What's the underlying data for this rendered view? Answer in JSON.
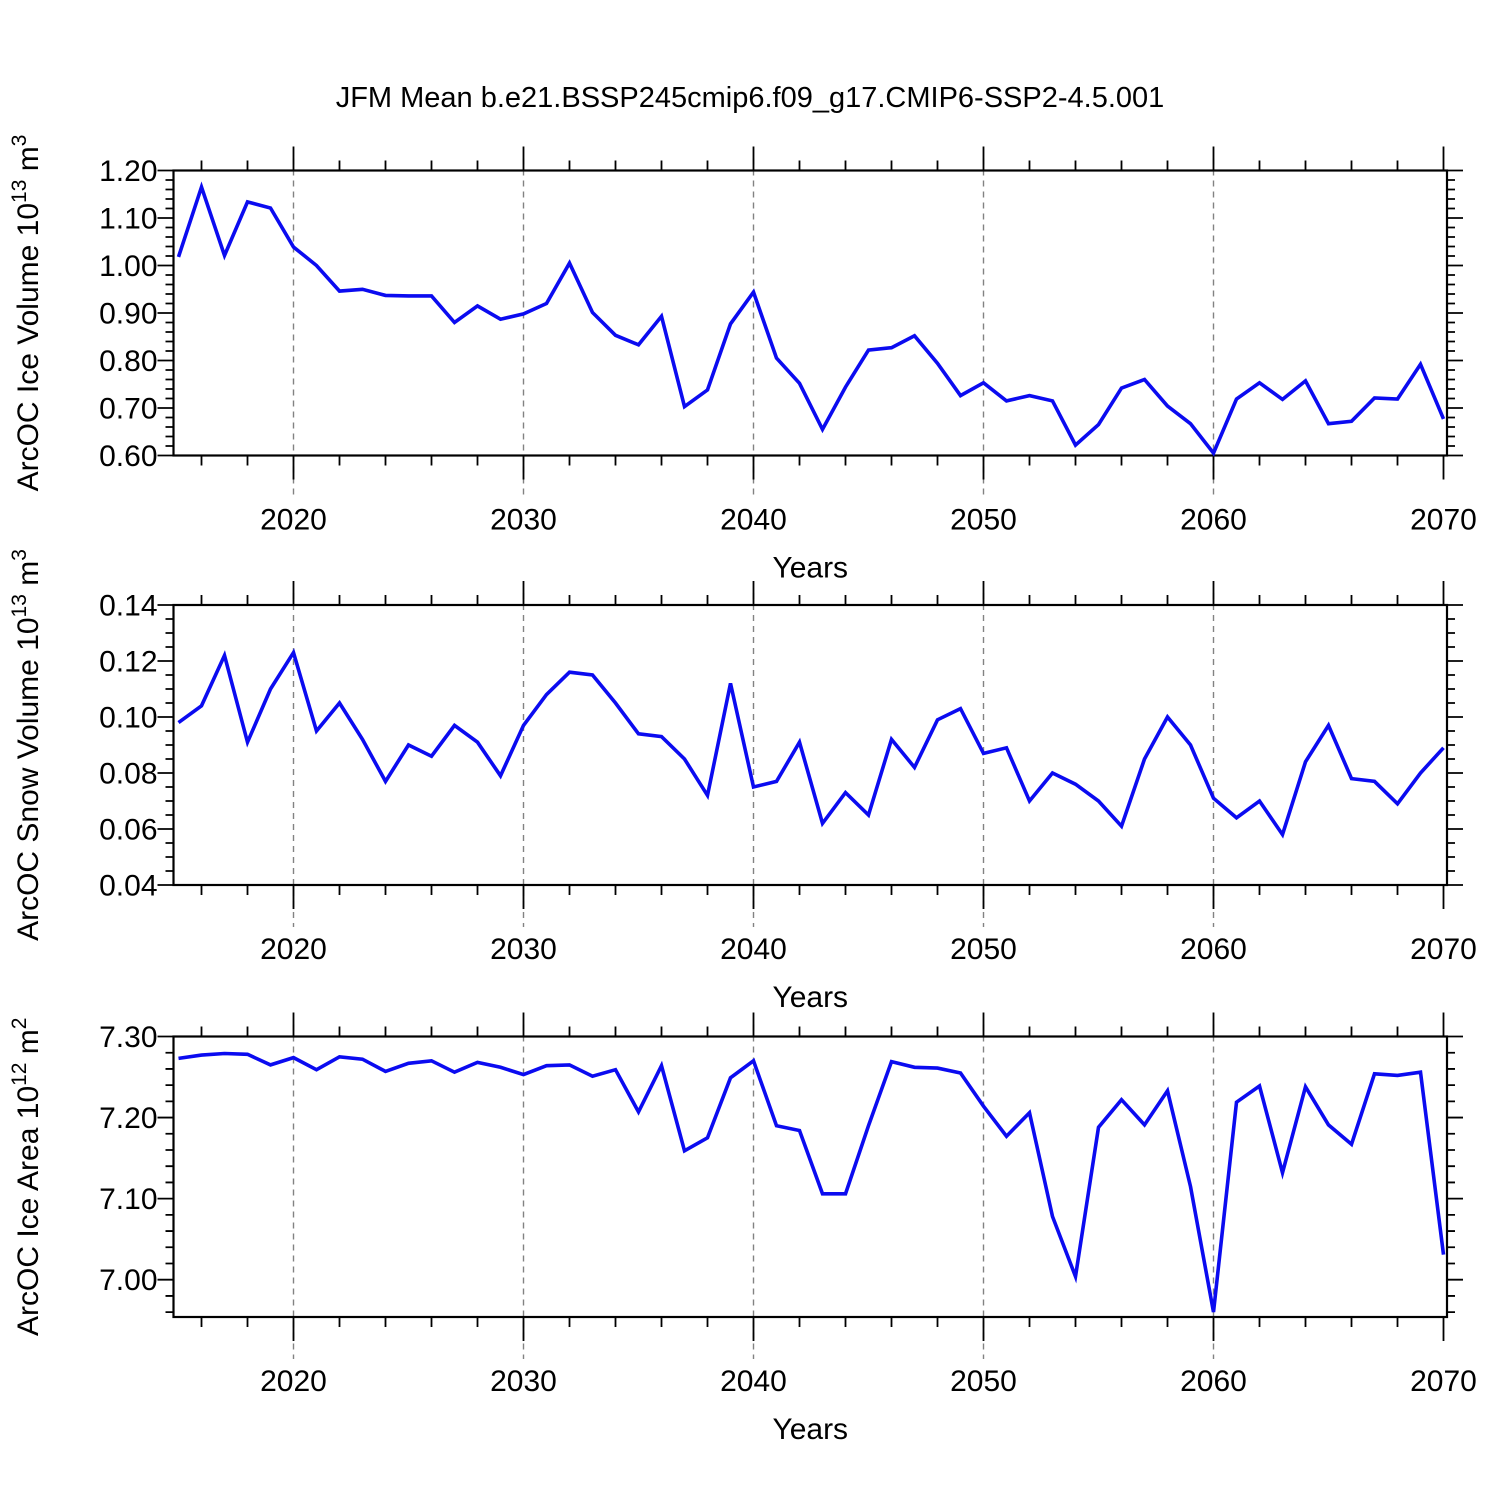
{
  "title": "JFM Mean b.e21.BSSP245cmip6.f09_g17.CMIP6-SSP2-4.5.001",
  "xlabel": "Years",
  "line_color": "#0b0bf0",
  "grid_color": "#828282",
  "frame_color": "#000000",
  "years": [
    2015,
    2016,
    2017,
    2018,
    2019,
    2020,
    2021,
    2022,
    2023,
    2024,
    2025,
    2026,
    2027,
    2028,
    2029,
    2030,
    2031,
    2032,
    2033,
    2034,
    2035,
    2036,
    2037,
    2038,
    2039,
    2040,
    2041,
    2042,
    2043,
    2044,
    2045,
    2046,
    2047,
    2048,
    2049,
    2050,
    2051,
    2052,
    2053,
    2054,
    2055,
    2056,
    2057,
    2058,
    2059,
    2060,
    2061,
    2062,
    2063,
    2064,
    2065,
    2066,
    2067,
    2068,
    2069,
    2070
  ],
  "x_axis": {
    "range_years": [
      2015,
      2070
    ],
    "major_tick_years": [
      2020,
      2030,
      2040,
      2050,
      2060,
      2070
    ],
    "major_tick_labels": [
      "2020",
      "2030",
      "2040",
      "2050",
      "2060",
      "2070"
    ],
    "minor_tick_step_years": 2,
    "grid_years": [
      2020,
      2030,
      2040,
      2050,
      2060
    ],
    "grid_style": "dashed"
  },
  "chart_data": [
    {
      "type": "line",
      "name": "arcoc-ice-volume",
      "ylabel_plain": "ArcOC Ice Volume 10^13 m^3",
      "ylabel_parts": [
        {
          "t": "ArcOC Ice Volume 10",
          "sup": false
        },
        {
          "t": "13",
          "sup": true
        },
        {
          "t": " m",
          "sup": false
        },
        {
          "t": "3",
          "sup": true
        }
      ],
      "ylim": [
        0.6,
        1.2
      ],
      "y_major": [
        {
          "v": 0.6,
          "label": "0.60"
        },
        {
          "v": 0.7,
          "label": "0.70"
        },
        {
          "v": 0.8,
          "label": "0.80"
        },
        {
          "v": 0.9,
          "label": "0.90"
        },
        {
          "v": 1.0,
          "label": "1.00"
        },
        {
          "v": 1.1,
          "label": "1.10"
        },
        {
          "v": 1.2,
          "label": "1.20"
        }
      ],
      "y_minor_step": 0.02,
      "values": [
        1.018,
        1.165,
        1.021,
        1.134,
        1.121,
        1.039,
        1.0,
        0.946,
        0.95,
        0.937,
        0.936,
        0.936,
        0.88,
        0.915,
        0.887,
        0.898,
        0.92,
        1.005,
        0.901,
        0.853,
        0.833,
        0.893,
        0.703,
        0.738,
        0.877,
        0.944,
        0.805,
        0.752,
        0.655,
        0.744,
        0.822,
        0.827,
        0.852,
        0.794,
        0.726,
        0.753,
        0.715,
        0.726,
        0.715,
        0.622,
        0.665,
        0.742,
        0.76,
        0.704,
        0.667,
        0.605,
        0.719,
        0.753,
        0.718,
        0.757,
        0.667,
        0.672,
        0.721,
        0.719,
        0.792,
        0.677
      ]
    },
    {
      "type": "line",
      "name": "arcoc-snow-volume",
      "ylabel_plain": "ArcOC Snow Volume 10^13 m^3",
      "ylabel_parts": [
        {
          "t": "ArcOC Snow Volume 10",
          "sup": false
        },
        {
          "t": "13",
          "sup": true
        },
        {
          "t": " m",
          "sup": false
        },
        {
          "t": "3",
          "sup": true
        }
      ],
      "ylim": [
        0.04,
        0.14
      ],
      "y_major": [
        {
          "v": 0.04,
          "label": "0.04"
        },
        {
          "v": 0.06,
          "label": "0.06"
        },
        {
          "v": 0.08,
          "label": "0.08"
        },
        {
          "v": 0.1,
          "label": "0.10"
        },
        {
          "v": 0.12,
          "label": "0.12"
        },
        {
          "v": 0.14,
          "label": "0.14"
        }
      ],
      "y_minor_step": 0.005,
      "values": [
        0.098,
        0.104,
        0.122,
        0.091,
        0.11,
        0.123,
        0.095,
        0.105,
        0.092,
        0.077,
        0.09,
        0.086,
        0.097,
        0.091,
        0.079,
        0.097,
        0.108,
        0.116,
        0.115,
        0.105,
        0.094,
        0.093,
        0.085,
        0.072,
        0.112,
        0.075,
        0.077,
        0.091,
        0.062,
        0.073,
        0.065,
        0.092,
        0.082,
        0.099,
        0.103,
        0.087,
        0.089,
        0.07,
        0.08,
        0.076,
        0.07,
        0.061,
        0.085,
        0.1,
        0.09,
        0.071,
        0.064,
        0.07,
        0.058,
        0.084,
        0.097,
        0.078,
        0.077,
        0.069,
        0.08,
        0.089
      ]
    },
    {
      "type": "line",
      "name": "arcoc-ice-area",
      "ylabel_plain": "ArcOC Ice Area 10^12 m^2",
      "ylabel_parts": [
        {
          "t": "ArcOC Ice Area 10",
          "sup": false
        },
        {
          "t": "12",
          "sup": true
        },
        {
          "t": " m",
          "sup": false
        },
        {
          "t": "2",
          "sup": true
        }
      ],
      "ylim": [
        6.954,
        7.3
      ],
      "y_major": [
        {
          "v": 7.0,
          "label": "7.00"
        },
        {
          "v": 7.1,
          "label": "7.10"
        },
        {
          "v": 7.2,
          "label": "7.20"
        },
        {
          "v": 7.3,
          "label": "7.30"
        }
      ],
      "y_minor_step": 0.02,
      "values": [
        7.273,
        7.277,
        7.279,
        7.278,
        7.265,
        7.274,
        7.259,
        7.275,
        7.272,
        7.257,
        7.267,
        7.27,
        7.256,
        7.268,
        7.262,
        7.253,
        7.264,
        7.265,
        7.251,
        7.259,
        7.207,
        7.264,
        7.159,
        7.175,
        7.249,
        7.27,
        7.19,
        7.184,
        7.106,
        7.106,
        7.19,
        7.269,
        7.262,
        7.261,
        7.255,
        7.214,
        7.177,
        7.206,
        7.078,
        7.004,
        7.188,
        7.222,
        7.191,
        7.233,
        7.115,
        6.96,
        7.219,
        7.239,
        7.132,
        7.238,
        7.191,
        7.167,
        7.254,
        7.252,
        7.256,
        7.031
      ]
    }
  ]
}
